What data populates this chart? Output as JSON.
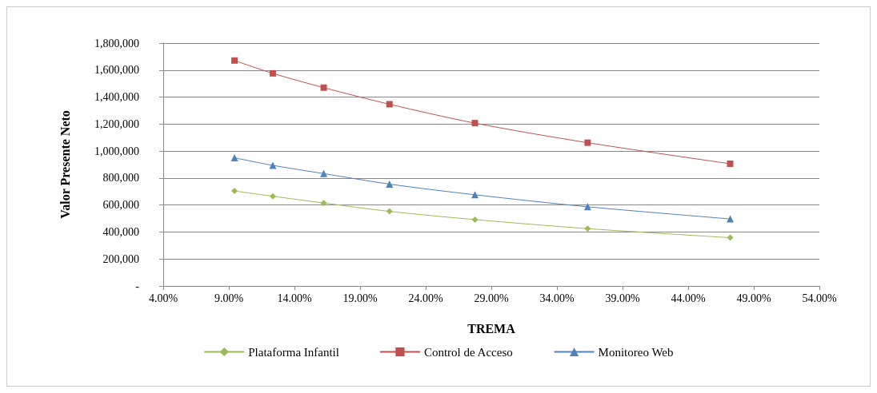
{
  "chart_data": {
    "type": "line",
    "xlabel": "TREMA",
    "ylabel": "Valor Presente Neto",
    "x": [
      9.43,
      12.35,
      16.23,
      21.24,
      27.75,
      36.34,
      47.2
    ],
    "series": [
      {
        "name": "Plataforma Infantil",
        "color": "#9bbb59",
        "marker": "diamond",
        "values": [
          704000,
          665000,
          615000,
          553000,
          492000,
          425000,
          358000
        ]
      },
      {
        "name": "Control de Acceso",
        "color": "#c0504d",
        "marker": "square",
        "values": [
          1671000,
          1576000,
          1470000,
          1347000,
          1207000,
          1062000,
          906000
        ]
      },
      {
        "name": "Monitoreo Web",
        "color": "#4f81bd",
        "marker": "triangle",
        "values": [
          950000,
          894000,
          833000,
          755000,
          676000,
          587000,
          497000
        ]
      }
    ],
    "xlim": [
      4,
      54
    ],
    "xticks": [
      {
        "value": 4,
        "label": "4.00%"
      },
      {
        "value": 9,
        "label": "9.00%"
      },
      {
        "value": 14,
        "label": "14.00%"
      },
      {
        "value": 19,
        "label": "19.00%"
      },
      {
        "value": 24,
        "label": "24.00%"
      },
      {
        "value": 29,
        "label": "29.00%"
      },
      {
        "value": 34,
        "label": "34.00%"
      },
      {
        "value": 39,
        "label": "39.00%"
      },
      {
        "value": 44,
        "label": "44.00%"
      },
      {
        "value": 49,
        "label": "49.00%"
      },
      {
        "value": 54,
        "label": "54.00%"
      }
    ],
    "ylim": [
      0,
      1800000
    ],
    "yticks": [
      {
        "value": 0,
        "label": "-"
      },
      {
        "value": 200000,
        "label": "200,000"
      },
      {
        "value": 400000,
        "label": "400,000"
      },
      {
        "value": 600000,
        "label": "600,000"
      },
      {
        "value": 800000,
        "label": "800,000"
      },
      {
        "value": 1000000,
        "label": "1,000,000"
      },
      {
        "value": 1200000,
        "label": "1,200,000"
      },
      {
        "value": 1400000,
        "label": "1,400,000"
      },
      {
        "value": 1600000,
        "label": "1,600,000"
      },
      {
        "value": 1800000,
        "label": "1,800,000"
      }
    ],
    "grid": "y",
    "legend": "bottom",
    "line_style": "solid"
  }
}
